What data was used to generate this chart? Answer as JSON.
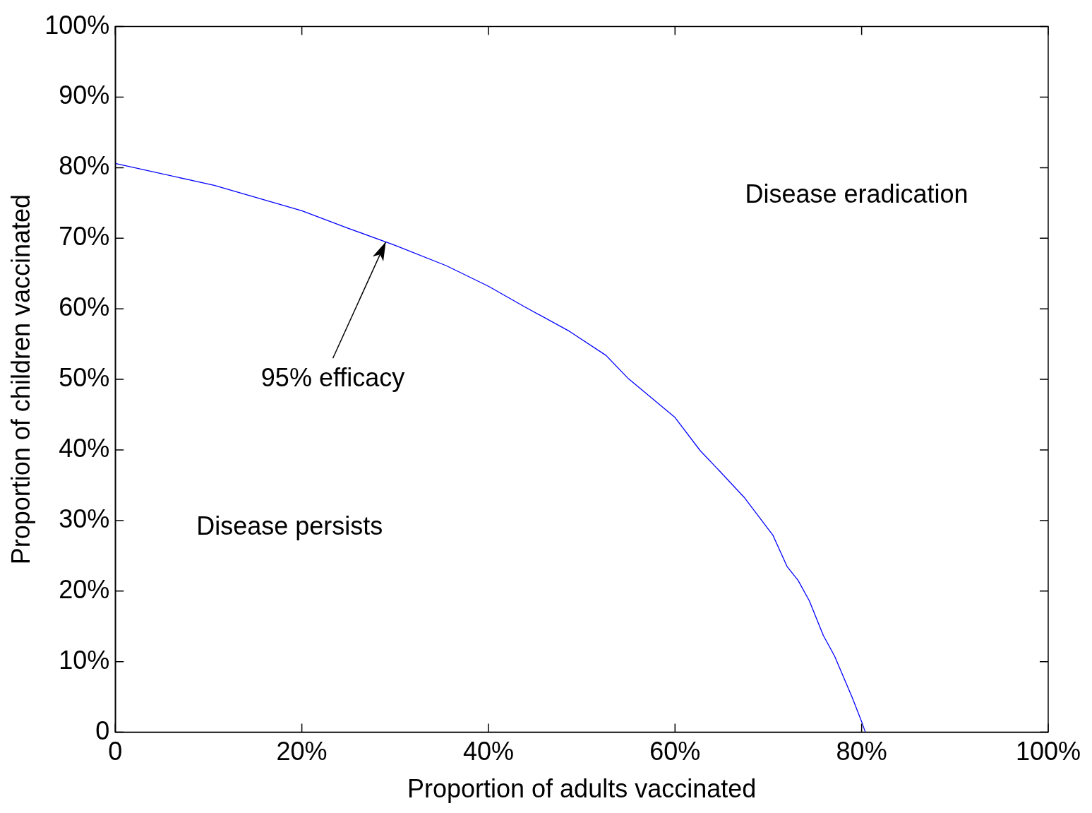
{
  "chart_data": {
    "type": "line",
    "xlabel": "Proportion of adults vaccinated",
    "ylabel": "Proportion of children vaccinated",
    "annotations": [
      "Disease eradication",
      "Disease persists",
      {
        "text": "95% efficacy",
        "x": 29,
        "y": 69.5
      }
    ],
    "x": [
      0,
      10.6,
      20,
      25,
      30,
      35.5,
      40,
      44,
      48.7,
      52.6,
      55,
      60,
      62.7,
      65,
      67.4,
      70.5,
      72,
      73.2,
      74.4,
      75.9,
      77.1,
      79,
      80,
      80.4
    ],
    "series": [
      {
        "color": "#0000ff",
        "values": [
          80.6,
          77.5,
          73.9,
          71.4,
          69.0,
          66.1,
          63.2,
          60.2,
          56.8,
          53.4,
          50.1,
          44.6,
          39.9,
          36.7,
          33.3,
          27.9,
          23.5,
          21.5,
          18.6,
          13.7,
          10.8,
          4.9,
          1.5,
          0
        ]
      }
    ],
    "xlim": [
      0,
      100
    ],
    "ylim": [
      0,
      100
    ],
    "xticks": [
      0,
      {
        "value": 20,
        "label": "20%"
      },
      {
        "value": 40,
        "label": "40%"
      },
      {
        "value": 60,
        "label": "60%"
      },
      {
        "value": 80,
        "label": "80%"
      },
      {
        "value": 100,
        "label": "100%"
      }
    ],
    "yticks": [
      0,
      {
        "value": 10,
        "label": "10%"
      },
      {
        "value": 20,
        "label": "20%"
      },
      {
        "value": 30,
        "label": "30%"
      },
      {
        "value": 40,
        "label": "40%"
      },
      {
        "value": 50,
        "label": "50%"
      },
      {
        "value": 60,
        "label": "60%"
      },
      {
        "value": 70,
        "label": "70%"
      },
      {
        "value": 80,
        "label": "80%"
      },
      {
        "value": 90,
        "label": "90%"
      },
      {
        "value": 100,
        "label": "100%"
      }
    ],
    "legend": false,
    "marker": "none",
    "line_style": "solid"
  }
}
